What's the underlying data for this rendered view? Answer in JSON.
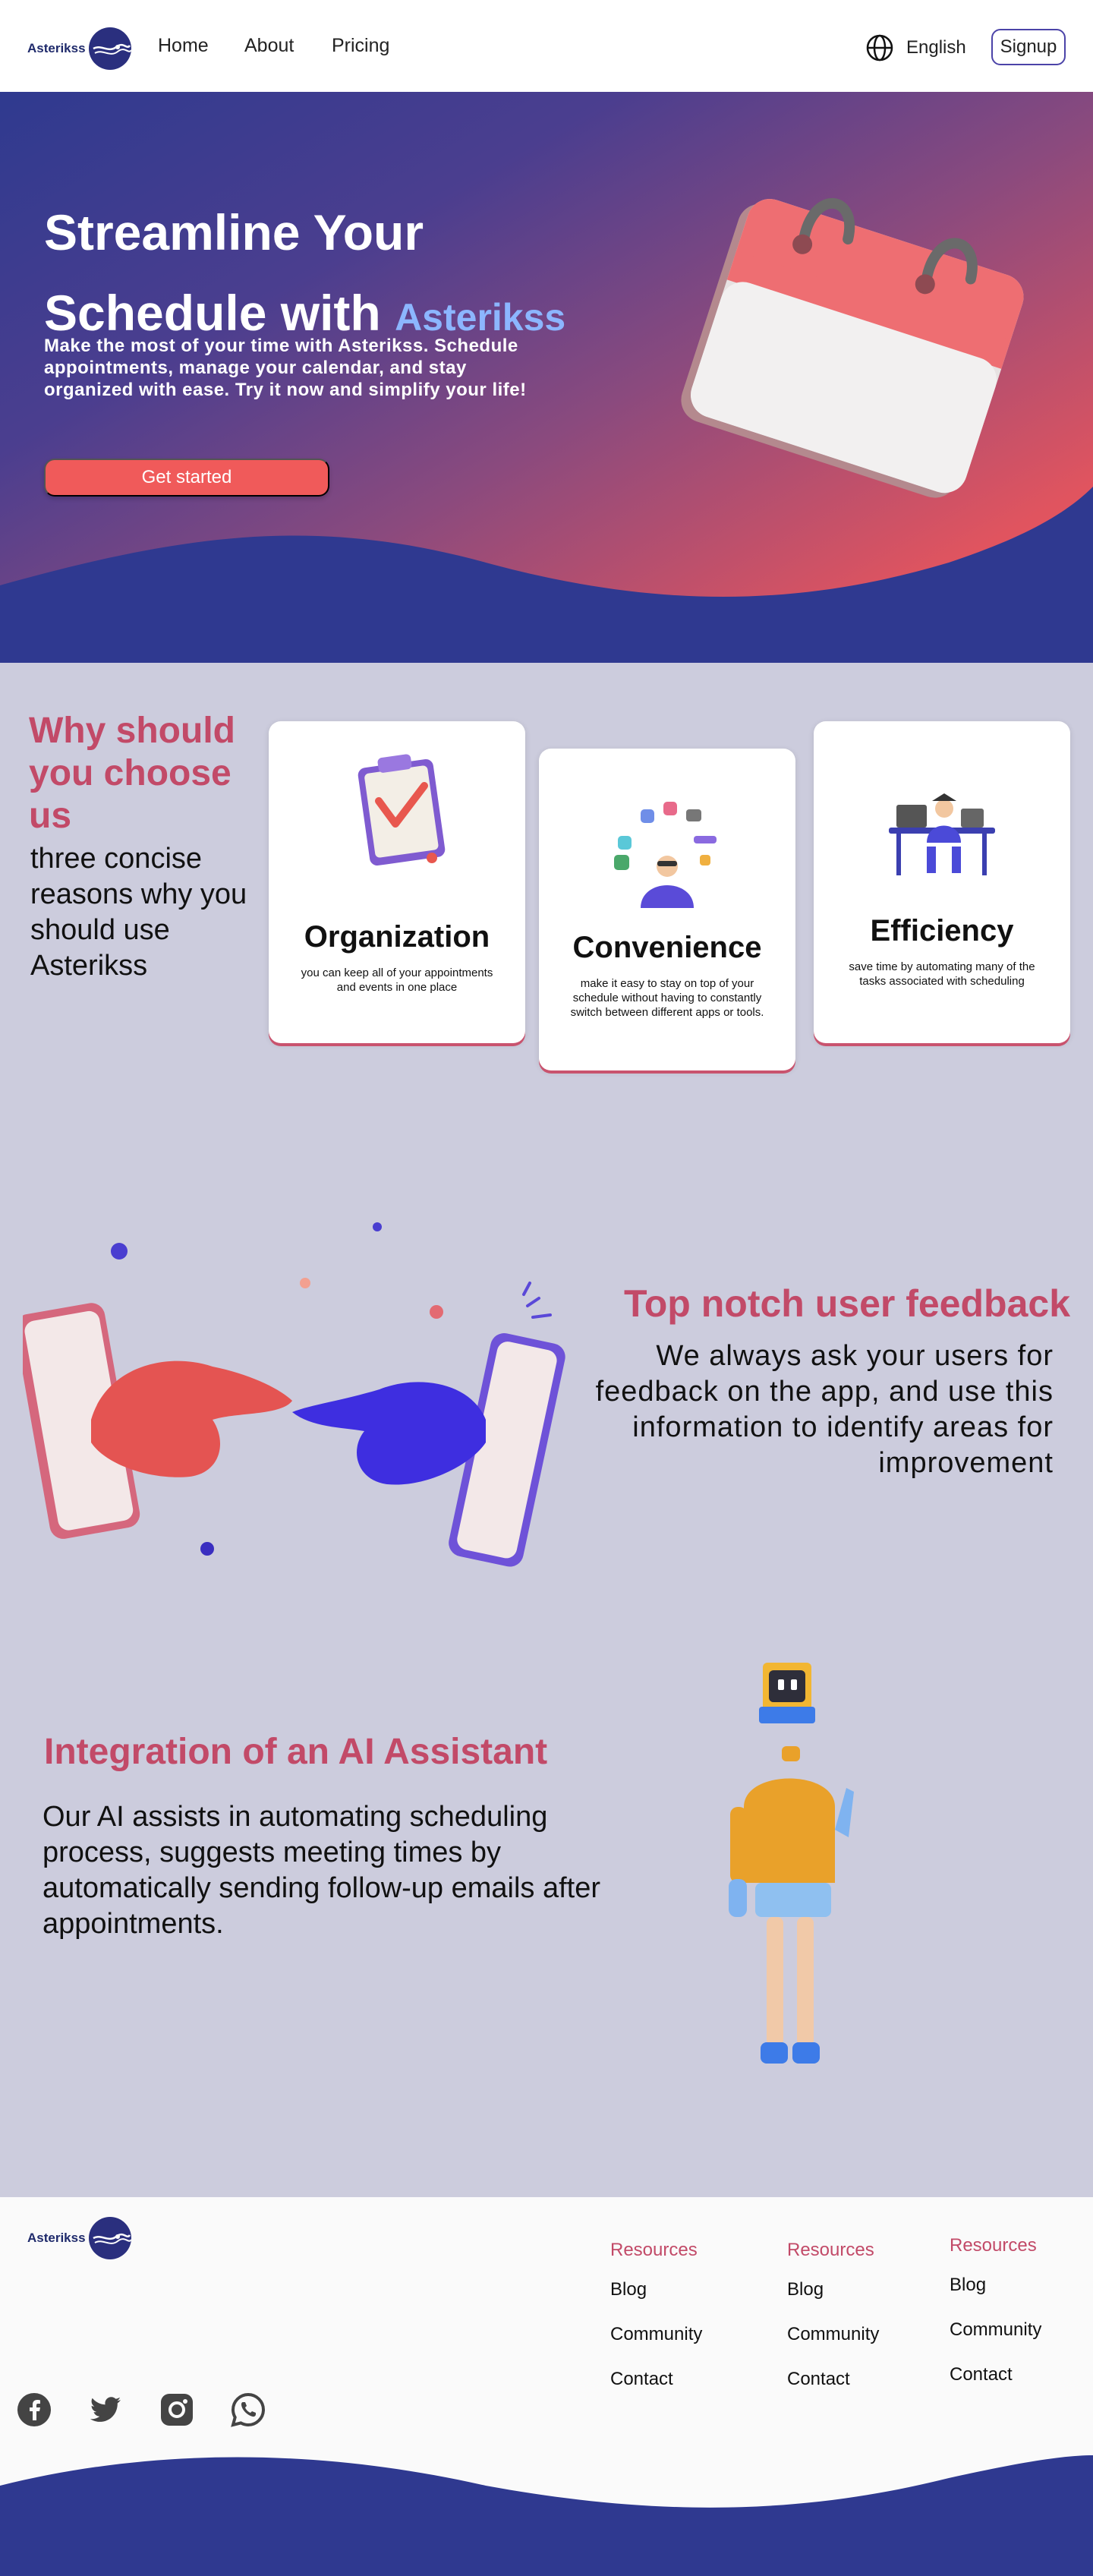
{
  "nav": {
    "logo_text": "Asterikss",
    "links": [
      "Home",
      "About",
      "Pricing"
    ],
    "language": "English",
    "signup": "Signup"
  },
  "hero": {
    "title_line1": "Streamline Your",
    "title_line2": "Schedule with",
    "title_brand": "Asterikss",
    "subtitle": "Make the most of your time with Asterikss. Schedule appointments, manage your calendar, and stay organized with ease. Try it now and simplify your life!",
    "cta": "Get started"
  },
  "why": {
    "title": "Why should you choose  us",
    "subtitle": "three concise reasons why you should use Asterikss",
    "cards": [
      {
        "title": "Organization",
        "desc": "you can keep all of your appointments and events in one place"
      },
      {
        "title": "Convenience",
        "desc": "make it easy to stay on top of your schedule without having to constantly switch between different apps or tools."
      },
      {
        "title": "Efficiency",
        "desc": "save time by automating many of the tasks associated with scheduling"
      }
    ]
  },
  "feedback": {
    "title": "Top notch user feedback",
    "text": "We always ask your users for feedback on the app, and use this information to identify areas for improvement"
  },
  "ai": {
    "title": "Integration of  an AI Assistant",
    "text": " Our AI assists in automating scheduling process, suggests meeting times by automatically sending follow-up emails after appointments."
  },
  "footer": {
    "logo_text": "Asterikss",
    "columns": [
      {
        "heading": "Resources",
        "links": [
          "Blog",
          "Community",
          "Contact"
        ]
      },
      {
        "heading": "Resources",
        "links": [
          "Blog",
          "Community",
          "Contact"
        ]
      },
      {
        "heading": "Resources",
        "links": [
          "Blog",
          "Community",
          "Contact"
        ]
      }
    ],
    "social_icons": [
      "facebook-icon",
      "twitter-icon",
      "instagram-icon",
      "whatsapp-icon"
    ]
  },
  "colors": {
    "brand_navy": "#2f3a8f",
    "accent_pink": "#c24a68",
    "cta_red": "#f05a5a",
    "section_bg": "#ccccdd"
  }
}
